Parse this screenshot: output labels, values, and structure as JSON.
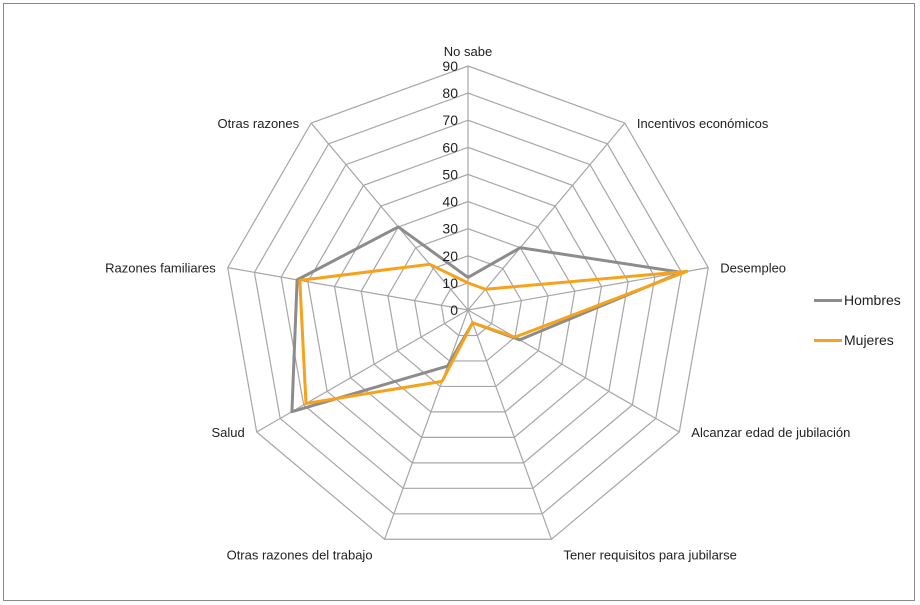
{
  "chart_data": {
    "type": "radar",
    "categories": [
      "No sabe",
      "Incentivos económicos",
      "Desempleo",
      "Alcanzar edad de jubilación",
      "Tener requisitos para jubilarse",
      "Otras razones del trabajo",
      "Salud",
      "Razones familiares",
      "Otras razones"
    ],
    "series": [
      {
        "name": "Hombres",
        "color": "#8c8c8c",
        "values": [
          12,
          30,
          80,
          22,
          5,
          22,
          75,
          64,
          40
        ]
      },
      {
        "name": "Mujeres",
        "color": "#f7a21b",
        "values": [
          10,
          10,
          82,
          20,
          5,
          28,
          69,
          63,
          22
        ]
      }
    ],
    "rlim": [
      0,
      90
    ],
    "ticks": [
      "0",
      "10",
      "20",
      "30",
      "40",
      "50",
      "60",
      "70",
      "80",
      "90"
    ],
    "grid": true,
    "legend_position": "right"
  }
}
